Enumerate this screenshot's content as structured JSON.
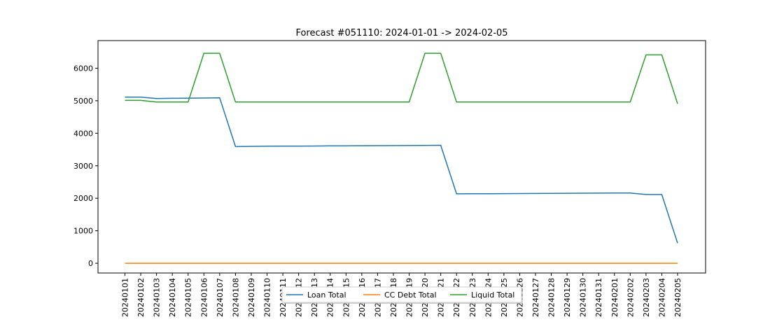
{
  "chart_data": {
    "type": "line",
    "title": "Forecast #051110: 2024-01-01 -> 2024-02-05",
    "xlabel": "",
    "ylabel": "",
    "ylim": [
      -300,
      6850
    ],
    "yticks": [
      0,
      1000,
      2000,
      3000,
      4000,
      5000,
      6000
    ],
    "grid": false,
    "legend_position": "bottom-center",
    "categories": [
      "20240101",
      "20240102",
      "20240103",
      "20240104",
      "20240105",
      "20240106",
      "20240107",
      "20240108",
      "20240109",
      "20240110",
      "20240111",
      "20240112",
      "20240113",
      "20240114",
      "20240115",
      "20240116",
      "20240117",
      "20240118",
      "20240119",
      "20240120",
      "20240121",
      "20240122",
      "20240123",
      "20240124",
      "20240125",
      "20240126",
      "20240127",
      "20240128",
      "20240129",
      "20240130",
      "20240131",
      "20240201",
      "20240202",
      "20240203",
      "20240204",
      "20240205"
    ],
    "series": [
      {
        "name": "Loan Total",
        "color": "#1f77b4",
        "values": [
          5110,
          5110,
          5070,
          5075,
          5080,
          5085,
          5090,
          3590,
          3595,
          3600,
          3602,
          3605,
          3607,
          3610,
          3612,
          3615,
          3618,
          3620,
          3622,
          3625,
          3630,
          2135,
          2137,
          2140,
          2142,
          2145,
          2147,
          2150,
          2152,
          2155,
          2157,
          2160,
          2162,
          2115,
          2115,
          620
        ]
      },
      {
        "name": "CC Debt Total",
        "color": "#ff7f0e",
        "values": [
          0,
          0,
          0,
          0,
          0,
          0,
          0,
          0,
          0,
          0,
          0,
          0,
          0,
          0,
          0,
          0,
          0,
          0,
          0,
          0,
          0,
          0,
          0,
          0,
          0,
          0,
          0,
          0,
          0,
          0,
          0,
          0,
          0,
          0,
          0,
          0
        ]
      },
      {
        "name": "Liquid Total",
        "color": "#2ca02c",
        "values": [
          5010,
          5010,
          4960,
          4960,
          4960,
          6460,
          6460,
          4960,
          4960,
          4960,
          4960,
          4960,
          4960,
          4960,
          4960,
          4960,
          4960,
          4960,
          4960,
          6460,
          6460,
          4960,
          4960,
          4960,
          4960,
          4960,
          4960,
          4960,
          4960,
          4960,
          4960,
          4960,
          4960,
          6410,
          6410,
          4910
        ]
      }
    ]
  }
}
